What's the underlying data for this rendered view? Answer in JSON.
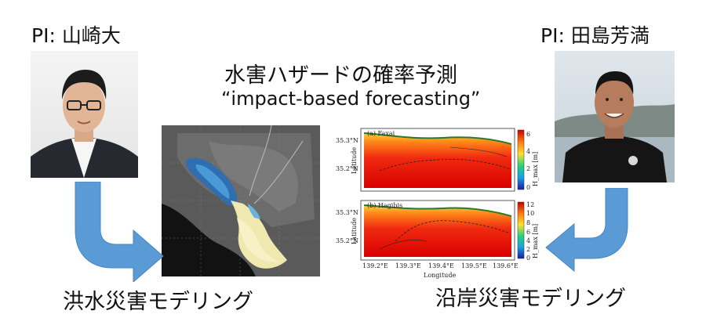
{
  "left_pi": {
    "label": "PI: 山崎大"
  },
  "right_pi": {
    "label": "PI: 田島芳満"
  },
  "center": {
    "title_jp": "水害ハザードの確率予測",
    "title_en": "“impact-based forecasting”"
  },
  "captions": {
    "left": "洪水災害モデリング",
    "right": "沿岸災害モデリング"
  },
  "surge_figure": {
    "panel_a": {
      "title": "(a) Faxai",
      "ylabel": "Latitude",
      "yticks": [
        "35.3°N",
        "35.2°N"
      ],
      "colorbar_label": "H_max [m]",
      "colorbar_ticks": [
        "6",
        "4",
        "2",
        "0"
      ]
    },
    "panel_b": {
      "title": "(b) Hagibis",
      "ylabel": "Latitude",
      "yticks": [
        "35.3°N",
        "35.2°N"
      ],
      "colorbar_label": "H_max [m]",
      "colorbar_ticks": [
        "12",
        "10",
        "8",
        "6",
        "4",
        "2",
        "0"
      ]
    },
    "xticks": [
      "139.2°E",
      "139.3°E",
      "139.4°E",
      "139.5°E",
      "139.6°E"
    ],
    "xlabel": "Longitude"
  },
  "colors": {
    "arrow_fill": "#5b9bd5",
    "arrow_stroke": "#4a86c0"
  }
}
